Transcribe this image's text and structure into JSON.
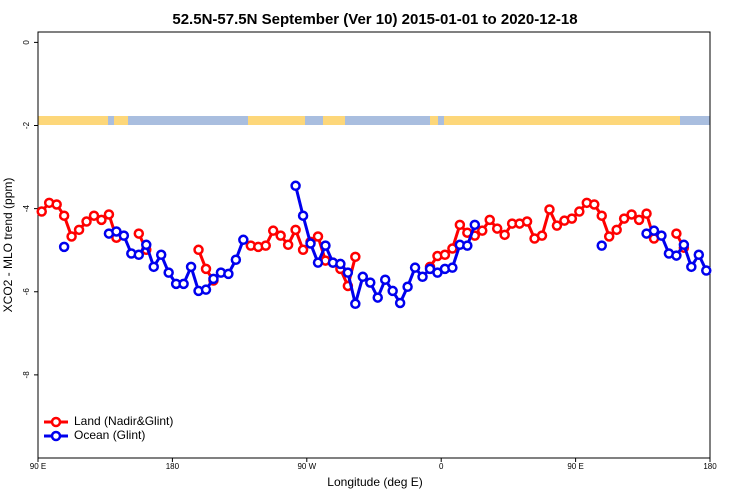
{
  "chart_data": {
    "type": "line",
    "title": "52.5N-57.5N September (Ver 10)   2015-01-01 to 2020-12-18",
    "x_label": "Longitude (deg E)",
    "y_label": "XCO2 - MLO trend (ppm)",
    "x": [
      92.5,
      97.5,
      102.5,
      107.5,
      112.5,
      117.5,
      122.5,
      127.5,
      132.5,
      137.5,
      142.5,
      147.5,
      152.5,
      157.5,
      162.5,
      167.5,
      172.5,
      177.5,
      182.5,
      187.5,
      192.5,
      197.5,
      202.5,
      207.5,
      212.5,
      217.5,
      222.5,
      227.5,
      232.5,
      237.5,
      242.5,
      247.5,
      252.5,
      257.5,
      262.5,
      267.5,
      272.5,
      277.5,
      282.5,
      287.5,
      292.5,
      297.5,
      302.5,
      307.5,
      312.5,
      317.5,
      322.5,
      327.5,
      332.5,
      337.5,
      342.5,
      347.5,
      352.5,
      357.5,
      362.5,
      367.5,
      372.5,
      377.5,
      382.5,
      387.5,
      392.5,
      397.5,
      402.5,
      407.5,
      412.5,
      417.5,
      422.5,
      427.5,
      432.5,
      437.5,
      442.5,
      447.5,
      452.5,
      457.5,
      462.5,
      467.5,
      472.5,
      477.5,
      482.5,
      487.5,
      492.5,
      497.5,
      502.5,
      507.5,
      512.5,
      517.5,
      522.5,
      527.5,
      532.5,
      537.5
    ],
    "series": [
      {
        "name": "Land (Nadir&Glint)",
        "color": "#ff0000",
        "values": [
          -4.07,
          -3.86,
          -3.9,
          -4.17,
          -4.67,
          -4.51,
          -4.31,
          -4.17,
          -4.27,
          -4.14,
          -4.7,
          null,
          null,
          -4.6,
          -4.99,
          null,
          null,
          null,
          null,
          null,
          null,
          -4.99,
          -5.45,
          -5.73,
          null,
          null,
          null,
          null,
          -4.89,
          -4.92,
          -4.89,
          -4.53,
          -4.65,
          -4.87,
          -4.51,
          -4.99,
          -4.8,
          -4.67,
          -5.25,
          -5.3,
          -5.45,
          -5.86,
          -5.16,
          null,
          null,
          null,
          null,
          null,
          null,
          null,
          null,
          null,
          -5.4,
          -5.14,
          -5.11,
          -4.96,
          -4.39,
          -4.58,
          -4.65,
          -4.53,
          -4.27,
          -4.48,
          -4.63,
          -4.36,
          -4.36,
          -4.31,
          -4.72,
          -4.65,
          -4.02,
          -4.41,
          -4.29,
          -4.24,
          -4.07,
          -3.86,
          -3.9,
          -4.17,
          -4.67,
          -4.51,
          -4.24,
          -4.14,
          -4.27,
          -4.12,
          -4.72,
          null,
          null,
          -4.6,
          -4.94,
          null,
          null,
          null
        ]
      },
      {
        "name": "Ocean (Glint)",
        "color": "#0000ee",
        "values": [
          null,
          null,
          null,
          -4.92,
          null,
          null,
          null,
          null,
          null,
          -4.6,
          -4.55,
          -4.65,
          -5.08,
          -5.11,
          -4.87,
          -5.4,
          -5.11,
          -5.54,
          -5.81,
          -5.81,
          -5.4,
          -5.98,
          -5.95,
          -5.69,
          -5.54,
          -5.57,
          -5.23,
          -4.75,
          null,
          null,
          null,
          null,
          null,
          null,
          -3.45,
          -4.17,
          -4.84,
          -5.3,
          -4.89,
          -5.3,
          -5.33,
          -5.54,
          -6.29,
          -5.64,
          -5.78,
          -6.14,
          -5.71,
          -5.98,
          -6.27,
          -5.88,
          -5.42,
          -5.64,
          -5.45,
          -5.54,
          -5.45,
          -5.42,
          -4.87,
          -4.89,
          -4.39,
          null,
          null,
          null,
          null,
          null,
          null,
          null,
          null,
          null,
          null,
          null,
          null,
          null,
          null,
          null,
          null,
          -4.89,
          null,
          null,
          null,
          null,
          null,
          -4.6,
          -4.53,
          -4.65,
          -5.08,
          -5.13,
          -4.87,
          -5.4,
          -5.11,
          -5.49
        ]
      }
    ],
    "xlim": [
      90,
      540
    ],
    "xticks": [
      {
        "value": 90,
        "label": "90 E"
      },
      180,
      {
        "value": 270,
        "label": "90 W"
      },
      {
        "value": 360,
        "label": "0"
      },
      {
        "value": 450,
        "label": "90 E"
      },
      {
        "value": 540,
        "label": "180"
      }
    ],
    "ylim": [
      -10,
      0.25
    ],
    "yticks": [
      0,
      -2,
      -4,
      -6,
      -8
    ],
    "legend": "bottom-left"
  }
}
